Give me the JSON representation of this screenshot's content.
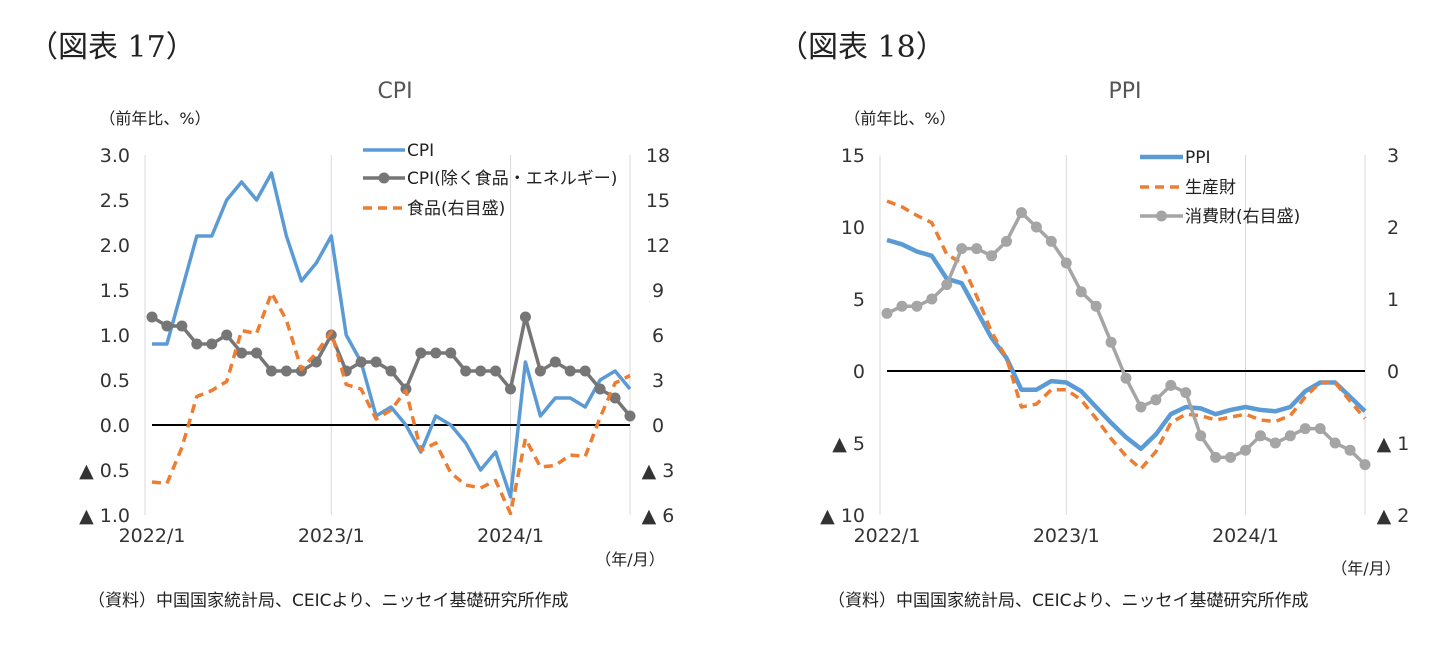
{
  "figures": [
    {
      "label": "（図表 17）",
      "source": "（資料）中国国家統計局、CEICより、ニッセイ基礎研究所作成",
      "chart_data": {
        "type": "line",
        "title": "CPI",
        "left_axis_unit": "（前年比、%）",
        "x_axis_unit": "（年/月）",
        "x_ticks": [
          "2022/1",
          "2023/1",
          "2024/1"
        ],
        "left_axis": {
          "min": -1.0,
          "max": 3.0,
          "ticks": [
            3.0,
            2.5,
            2.0,
            1.5,
            1.0,
            0.5,
            0.0,
            -0.5,
            -1.0
          ],
          "tick_labels": [
            "3.0",
            "2.5",
            "2.0",
            "1.5",
            "1.0",
            "0.5",
            "0.0",
            "▲ 0.5",
            "▲ 1.0"
          ]
        },
        "right_axis": {
          "min": -6,
          "max": 18,
          "ticks": [
            18,
            15,
            12,
            9,
            6,
            3,
            0,
            -3,
            -6
          ],
          "tick_labels": [
            "18",
            "15",
            "12",
            "9",
            "6",
            "3",
            "0",
            "▲ 3",
            "▲ 6"
          ]
        },
        "x_months": [
          "2022/1",
          "2022/2",
          "2022/3",
          "2022/4",
          "2022/5",
          "2022/6",
          "2022/7",
          "2022/8",
          "2022/9",
          "2022/10",
          "2022/11",
          "2022/12",
          "2023/1",
          "2023/2",
          "2023/3",
          "2023/4",
          "2023/5",
          "2023/6",
          "2023/7",
          "2023/8",
          "2023/9",
          "2023/10",
          "2023/11",
          "2023/12",
          "2024/1",
          "2024/2",
          "2024/3",
          "2024/4",
          "2024/5",
          "2024/6",
          "2024/7",
          "2024/8",
          "2024/9"
        ],
        "series": [
          {
            "name": "CPI",
            "axis": "left",
            "color": "#5b9bd5",
            "style": "solid",
            "values": [
              0.9,
              0.9,
              1.5,
              2.1,
              2.1,
              2.5,
              2.7,
              2.5,
              2.8,
              2.1,
              1.6,
              1.8,
              2.1,
              1.0,
              0.7,
              0.1,
              0.2,
              0.0,
              -0.3,
              0.1,
              0.0,
              -0.2,
              -0.5,
              -0.3,
              -0.8,
              0.7,
              0.1,
              0.3,
              0.3,
              0.2,
              0.5,
              0.6,
              0.4
            ]
          },
          {
            "name": "CPI(除く食品・エネルギー)",
            "axis": "left",
            "color": "#767676",
            "style": "marker",
            "values": [
              1.2,
              1.1,
              1.1,
              0.9,
              0.9,
              1.0,
              0.8,
              0.8,
              0.6,
              0.6,
              0.6,
              0.7,
              1.0,
              0.6,
              0.7,
              0.7,
              0.6,
              0.4,
              0.8,
              0.8,
              0.8,
              0.6,
              0.6,
              0.6,
              0.4,
              1.2,
              0.6,
              0.7,
              0.6,
              0.6,
              0.4,
              0.3,
              0.1
            ]
          },
          {
            "name": "食品(右目盛)",
            "axis": "right",
            "color": "#ed7d31",
            "style": "dashed",
            "values": [
              -3.8,
              -3.9,
              -1.5,
              1.9,
              2.3,
              2.9,
              6.3,
              6.1,
              8.8,
              7.0,
              3.7,
              4.8,
              6.2,
              2.7,
              2.4,
              0.4,
              1.0,
              2.3,
              -1.7,
              -1.2,
              -3.2,
              -4.0,
              -4.2,
              -3.7,
              -5.9,
              -0.9,
              -2.8,
              -2.7,
              -2.0,
              -2.1,
              0.5,
              2.8,
              3.3
            ]
          }
        ]
      }
    },
    {
      "label": "（図表 18）",
      "source": "（資料）中国国家統計局、CEICより、ニッセイ基礎研究所作成",
      "chart_data": {
        "type": "line",
        "title": "PPI",
        "left_axis_unit": "（前年比、%）",
        "x_axis_unit": "（年/月）",
        "x_ticks": [
          "2022/1",
          "2023/1",
          "2024/1"
        ],
        "left_axis": {
          "min": -10,
          "max": 15,
          "ticks": [
            15,
            10,
            5,
            0,
            -5,
            -10
          ],
          "tick_labels": [
            "15",
            "10",
            "5",
            "0",
            "▲ 5",
            "▲ 10"
          ]
        },
        "right_axis": {
          "min": -2,
          "max": 3,
          "ticks": [
            3,
            2,
            1,
            0,
            -1,
            -2
          ],
          "tick_labels": [
            "3",
            "2",
            "1",
            "0",
            "▲ 1",
            "▲ 2"
          ]
        },
        "x_months": [
          "2022/1",
          "2022/2",
          "2022/3",
          "2022/4",
          "2022/5",
          "2022/6",
          "2022/7",
          "2022/8",
          "2022/9",
          "2022/10",
          "2022/11",
          "2022/12",
          "2023/1",
          "2023/2",
          "2023/3",
          "2023/4",
          "2023/5",
          "2023/6",
          "2023/7",
          "2023/8",
          "2023/9",
          "2023/10",
          "2023/11",
          "2023/12",
          "2024/1",
          "2024/2",
          "2024/3",
          "2024/4",
          "2024/5",
          "2024/6",
          "2024/7",
          "2024/8",
          "2024/9"
        ],
        "series": [
          {
            "name": "PPI",
            "axis": "left",
            "color": "#5b9bd5",
            "style": "solid-thick",
            "values": [
              9.1,
              8.8,
              8.3,
              8.0,
              6.4,
              6.1,
              4.2,
              2.3,
              0.9,
              -1.3,
              -1.3,
              -0.7,
              -0.8,
              -1.4,
              -2.5,
              -3.6,
              -4.6,
              -5.4,
              -4.4,
              -3.0,
              -2.5,
              -2.6,
              -3.0,
              -2.7,
              -2.5,
              -2.7,
              -2.8,
              -2.5,
              -1.4,
              -0.8,
              -0.8,
              -1.8,
              -2.8
            ]
          },
          {
            "name": "生産財",
            "axis": "left",
            "color": "#ed7d31",
            "style": "dashed",
            "values": [
              11.8,
              11.4,
              10.8,
              10.3,
              8.1,
              7.5,
              5.2,
              2.7,
              0.9,
              -2.5,
              -2.3,
              -1.3,
              -1.3,
              -2.0,
              -3.3,
              -4.7,
              -5.9,
              -6.8,
              -5.6,
              -3.6,
              -3.0,
              -3.1,
              -3.4,
              -3.2,
              -3.0,
              -3.4,
              -3.5,
              -3.1,
              -1.8,
              -0.8,
              -0.8,
              -2.1,
              -3.3
            ]
          },
          {
            "name": "消費財(右目盛)",
            "axis": "right",
            "color": "#a5a5a5",
            "style": "marker",
            "values": [
              0.8,
              0.9,
              0.9,
              1.0,
              1.2,
              1.7,
              1.7,
              1.6,
              1.8,
              2.2,
              2.0,
              1.8,
              1.5,
              1.1,
              0.9,
              0.4,
              -0.1,
              -0.5,
              -0.4,
              -0.2,
              -0.3,
              -0.9,
              -1.2,
              -1.2,
              -1.1,
              -0.9,
              -1.0,
              -0.9,
              -0.8,
              -0.8,
              -1.0,
              -1.1,
              -1.3
            ]
          }
        ]
      }
    }
  ]
}
